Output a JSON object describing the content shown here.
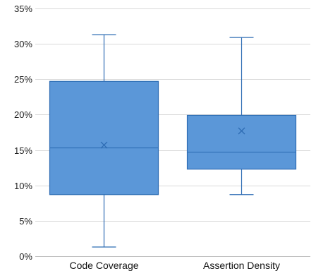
{
  "chart_data": {
    "type": "box",
    "title": "",
    "xlabel": "",
    "ylabel": "",
    "ylim": [
      0,
      35
    ],
    "yticks": [
      0,
      5,
      10,
      15,
      20,
      25,
      30,
      35
    ],
    "ytick_labels": [
      "0%",
      "5%",
      "10%",
      "15%",
      "20%",
      "25%",
      "30%",
      "35%"
    ],
    "grid": true,
    "legend": "none",
    "categories": [
      "Code Coverage",
      "Assertion Density"
    ],
    "boxes": [
      {
        "category": "Code Coverage",
        "min": 1.3,
        "q1": 8.7,
        "median": 15.3,
        "q3": 24.7,
        "max": 31.3,
        "mean": 15.7
      },
      {
        "category": "Assertion Density",
        "min": 8.7,
        "q1": 12.3,
        "median": 14.7,
        "q3": 19.9,
        "max": 30.9,
        "mean": 17.7
      }
    ],
    "colors": {
      "box_fill": "#5b97d8",
      "box_stroke": "#2e6db4"
    }
  }
}
